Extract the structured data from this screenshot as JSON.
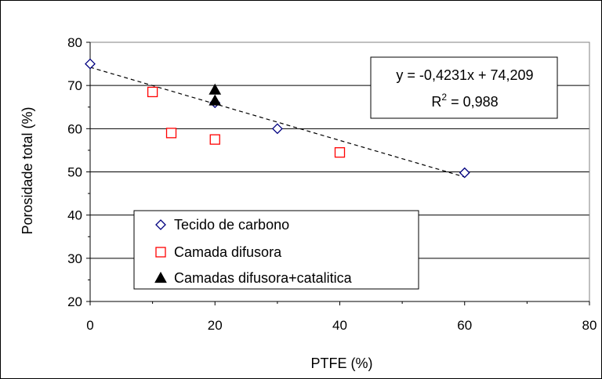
{
  "chart_data": {
    "type": "scatter",
    "xlabel": "PTFE (%)",
    "ylabel": "Porosidade total (%)",
    "xlim": [
      0,
      80
    ],
    "ylim": [
      20,
      80
    ],
    "x_ticks": [
      "0",
      "20",
      "40",
      "60",
      "80"
    ],
    "y_ticks": [
      "20",
      "30",
      "40",
      "50",
      "60",
      "70",
      "80"
    ],
    "grid": "horizontal",
    "legend_position": "bottom-left",
    "series": [
      {
        "name": "Tecido de carbono",
        "marker": "diamond",
        "color": "#000080",
        "points": [
          [
            0,
            75
          ],
          [
            20,
            66
          ],
          [
            30,
            60
          ],
          [
            60,
            49.8
          ]
        ]
      },
      {
        "name": "Camada difusora",
        "marker": "square",
        "color": "#ff0000",
        "points": [
          [
            10,
            68.5
          ],
          [
            13,
            59
          ],
          [
            20,
            57.5
          ],
          [
            40,
            54.5
          ]
        ]
      },
      {
        "name": "Camadas difusora+catalitica",
        "marker": "triangle",
        "color": "#000000",
        "points": [
          [
            20,
            69
          ],
          [
            20,
            66.5
          ]
        ]
      }
    ],
    "trendline": {
      "style": "dashed",
      "slope": -0.4231,
      "intercept": 74.209,
      "x_range": [
        0,
        60
      ],
      "equation": "y = -0,4231x + 74,209",
      "r2_label": "R",
      "r2_sup": "2",
      "r2_value": " = 0,988"
    }
  }
}
